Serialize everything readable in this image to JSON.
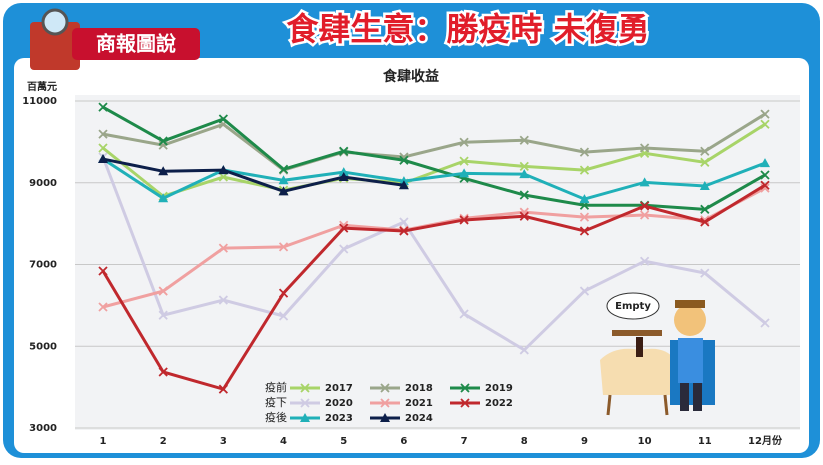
{
  "header": {
    "logo": "商報圖說",
    "title": "食肆生意：勝疫時 未復勇"
  },
  "illustration_text": "Empty",
  "chart_data": {
    "type": "line",
    "title": "食肆收益",
    "y_label": "百萬元",
    "categories": [
      "1",
      "2",
      "3",
      "4",
      "5",
      "6",
      "7",
      "8",
      "9",
      "10",
      "11",
      "12月份"
    ],
    "ylim": [
      3000,
      11000
    ],
    "yticks": [
      3000,
      5000,
      7000,
      9000,
      11000
    ],
    "grid": true,
    "legend_groups": [
      "疫前",
      "疫下",
      "疫後"
    ],
    "series": [
      {
        "name": "2017",
        "color": "#a8d468",
        "marker": "x",
        "values": [
          9850,
          8670,
          9140,
          8820,
          9110,
          8990,
          9530,
          9400,
          9310,
          9720,
          9500,
          10430
        ]
      },
      {
        "name": "2018",
        "color": "#9aa68a",
        "marker": "x",
        "values": [
          10190,
          9920,
          10430,
          9310,
          9750,
          9630,
          9990,
          10040,
          9750,
          9850,
          9770,
          10680
        ]
      },
      {
        "name": "2019",
        "color": "#1e8a4a",
        "marker": "x",
        "values": [
          10850,
          10020,
          10560,
          9330,
          9770,
          9550,
          9110,
          8700,
          8450,
          8450,
          8350,
          9190
        ]
      },
      {
        "name": "2020",
        "color": "#cfcbe3",
        "marker": "x",
        "values": [
          9630,
          5760,
          6130,
          5740,
          7380,
          8040,
          5790,
          4910,
          6350,
          7080,
          6790,
          5570
        ]
      },
      {
        "name": "2021",
        "color": "#f0a0a0",
        "marker": "x",
        "values": [
          5960,
          6350,
          7400,
          7430,
          7960,
          7840,
          8130,
          8280,
          8160,
          8210,
          8090,
          8870
        ]
      },
      {
        "name": "2022",
        "color": "#c0282d",
        "marker": "x",
        "values": [
          6840,
          4370,
          3950,
          6300,
          7890,
          7820,
          8090,
          8180,
          7820,
          8430,
          8040,
          8940
        ]
      },
      {
        "name": "2023",
        "color": "#20b0b8",
        "marker": "triangle",
        "values": [
          9580,
          8620,
          9310,
          9060,
          9260,
          9040,
          9230,
          9210,
          8600,
          9010,
          8920,
          9480
        ]
      },
      {
        "name": "2024",
        "color": "#0d1f4a",
        "marker": "triangle",
        "values": [
          9580,
          9280,
          9310,
          8790,
          9140,
          8940,
          null,
          null,
          null,
          null,
          null,
          null
        ]
      }
    ]
  }
}
